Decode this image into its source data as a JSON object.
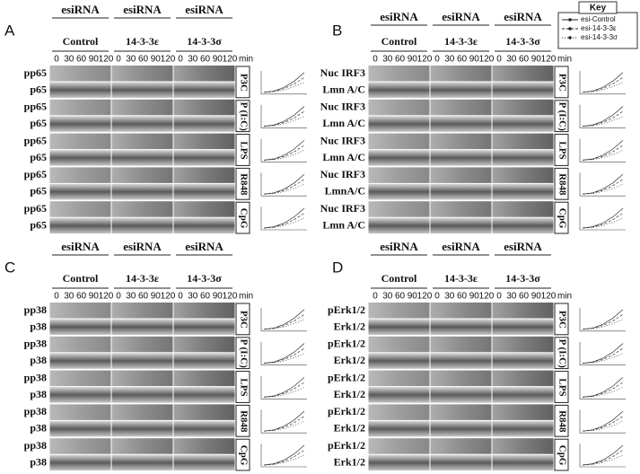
{
  "key": {
    "title": "Key",
    "entries": [
      "esi-Control",
      "esi-14-3-3ε",
      "esi-14-3-3σ"
    ]
  },
  "panels": [
    {
      "letter": "A",
      "groups": [
        {
          "header": "esiRNA",
          "condition": "Control"
        },
        {
          "header": "esiRNA",
          "condition": "14-3-3ε"
        },
        {
          "header": "esiRNA",
          "condition": "14-3-3σ"
        }
      ],
      "times": [
        "0",
        "30",
        "60",
        "90",
        "120"
      ],
      "unit": "min",
      "rows": [
        {
          "stimulus": "P3C",
          "top": "pp65",
          "bottom": "p65"
        },
        {
          "stimulus": "P (I:C)",
          "top": "pp65",
          "bottom": "p65"
        },
        {
          "stimulus": "LPS",
          "top": "pp65",
          "bottom": "p65"
        },
        {
          "stimulus": "R848",
          "top": "pp65",
          "bottom": "p65"
        },
        {
          "stimulus": "CpG",
          "top": "pp65",
          "bottom": "p65"
        }
      ]
    },
    {
      "letter": "B",
      "groups": [
        {
          "header": "esiRNA",
          "condition": "Control"
        },
        {
          "header": "esiRNA",
          "condition": "14-3-3ε"
        },
        {
          "header": "esiRNA",
          "condition": "14-3-3σ"
        }
      ],
      "times": [
        "0",
        "30",
        "60",
        "90",
        "120"
      ],
      "unit": "min",
      "rows": [
        {
          "stimulus": "P3C",
          "top": "Nuc IRF3",
          "bottom": "Lmn A/C"
        },
        {
          "stimulus": "P (I:C)",
          "top": "Nuc IRF3",
          "bottom": "Lmn A/C"
        },
        {
          "stimulus": "LPS",
          "top": "Nuc IRF3",
          "bottom": "Lmn A/C"
        },
        {
          "stimulus": "R848",
          "top": "Nuc IRF3",
          "bottom": "LmnA/C"
        },
        {
          "stimulus": "CpG",
          "top": "Nuc IRF3",
          "bottom": "Lmn A/C"
        }
      ]
    },
    {
      "letter": "C",
      "groups": [
        {
          "header": "esiRNA",
          "condition": "Control"
        },
        {
          "header": "esiRNA",
          "condition": "14-3-3ε"
        },
        {
          "header": "esiRNA",
          "condition": "14-3-3σ"
        }
      ],
      "times": [
        "0",
        "30",
        "60",
        "90",
        "120"
      ],
      "unit": "min",
      "rows": [
        {
          "stimulus": "P3C",
          "top": "pp38",
          "bottom": "p38"
        },
        {
          "stimulus": "P (I:C)",
          "top": "pp38",
          "bottom": "p38"
        },
        {
          "stimulus": "LPS",
          "top": "pp38",
          "bottom": "p38"
        },
        {
          "stimulus": "R848",
          "top": "pp38",
          "bottom": "p38"
        },
        {
          "stimulus": "CpG",
          "top": "pp38",
          "bottom": "p38"
        }
      ]
    },
    {
      "letter": "D",
      "groups": [
        {
          "header": "esiRNA",
          "condition": "Control"
        },
        {
          "header": "esiRNA",
          "condition": "14-3-3ε"
        },
        {
          "header": "esiRNA",
          "condition": "14-3-3σ"
        }
      ],
      "times": [
        "0",
        "30",
        "60",
        "90",
        "120"
      ],
      "unit": "min",
      "rows": [
        {
          "stimulus": "P3C",
          "top": "pErk1/2",
          "bottom": "Erk1/2"
        },
        {
          "stimulus": "P (I:C)",
          "top": "pErk1/2",
          "bottom": "Erk1/2"
        },
        {
          "stimulus": "LPS",
          "top": "pErk1/2",
          "bottom": "Erk1/2"
        },
        {
          "stimulus": "R848",
          "top": "pErk1/2",
          "bottom": "Erk1/2"
        },
        {
          "stimulus": "CpG",
          "top": "pErk1/2",
          "bottom": "Erk1/2"
        }
      ]
    }
  ]
}
